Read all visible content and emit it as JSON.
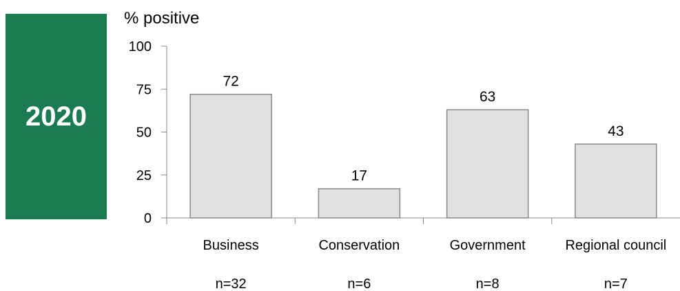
{
  "badge": {
    "year": "2020",
    "color": "#1a7a52"
  },
  "chart_data": {
    "type": "bar",
    "ylabel": "% positive",
    "ylim": [
      0,
      100
    ],
    "yticks": [
      0,
      25,
      50,
      75,
      100
    ],
    "categories": [
      "Business",
      "Conservation",
      "Government",
      "Regional council"
    ],
    "values": [
      72,
      17,
      63,
      43
    ],
    "sample_sizes": [
      "n=32",
      "n=6",
      "n=8",
      "n=7"
    ],
    "bar_fill": "#e0e0e0",
    "bar_stroke": "#888888",
    "grid": false,
    "legend": false
  }
}
